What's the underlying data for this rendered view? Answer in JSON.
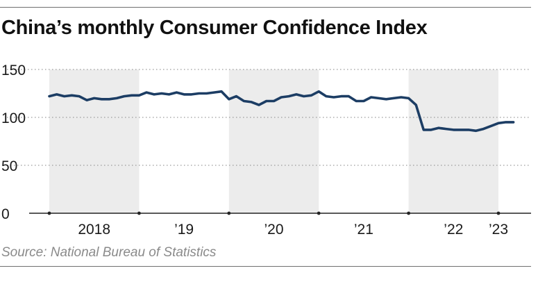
{
  "title": "China’s monthly Consumer Confidence Index",
  "source": "Source: National Bureau of Statistics",
  "colors": {
    "line": "#1c3d64",
    "band": "#ececec",
    "grid": "#9a9a9a",
    "axis": "#222222"
  },
  "chart_data": {
    "type": "line",
    "title": "China’s monthly Consumer Confidence Index",
    "xlabel": "",
    "ylabel": "",
    "ylim": [
      0,
      150
    ],
    "y_ticks": [
      0,
      50,
      100,
      150
    ],
    "x_ticks": [
      "2018",
      "’19",
      "’20",
      "’21",
      "’22",
      "’23"
    ],
    "x_tick_positions": [
      2018.5,
      2019.5,
      2020.5,
      2021.5,
      2022.5,
      2023.0
    ],
    "xlim": [
      2018.0,
      2023.17
    ],
    "grid": "horizontal dotted",
    "shaded_years": [
      2018,
      2020,
      2022
    ],
    "series": [
      {
        "x": [
          2018.0,
          2018.083,
          2018.167,
          2018.25,
          2018.333,
          2018.417,
          2018.5,
          2018.583,
          2018.667,
          2018.75,
          2018.833,
          2018.917,
          2019.0,
          2019.083,
          2019.167,
          2019.25,
          2019.333,
          2019.417,
          2019.5,
          2019.583,
          2019.667,
          2019.75,
          2019.833,
          2019.917,
          2020.0,
          2020.083,
          2020.167,
          2020.25,
          2020.333,
          2020.417,
          2020.5,
          2020.583,
          2020.667,
          2020.75,
          2020.833,
          2020.917,
          2021.0,
          2021.083,
          2021.167,
          2021.25,
          2021.333,
          2021.417,
          2021.5,
          2021.583,
          2021.667,
          2021.75,
          2021.833,
          2021.917,
          2022.0,
          2022.083,
          2022.167,
          2022.25,
          2022.333,
          2022.417,
          2022.5,
          2022.583,
          2022.667,
          2022.75,
          2022.833,
          2022.917,
          2023.0,
          2023.083,
          2023.167
        ],
        "values": [
          122,
          124,
          122,
          123,
          122,
          118,
          120,
          119,
          119,
          120,
          122,
          123,
          123,
          126,
          124,
          125,
          124,
          126,
          124,
          124,
          125,
          125,
          126,
          127,
          119,
          122,
          117,
          116,
          113,
          117,
          117,
          121,
          122,
          124,
          122,
          123,
          127,
          122,
          121,
          122,
          122,
          117,
          117,
          121,
          120,
          119,
          120,
          121,
          120,
          113,
          87,
          87,
          89,
          88,
          87,
          87,
          87,
          86,
          88,
          91,
          94,
          95,
          95
        ]
      }
    ]
  }
}
